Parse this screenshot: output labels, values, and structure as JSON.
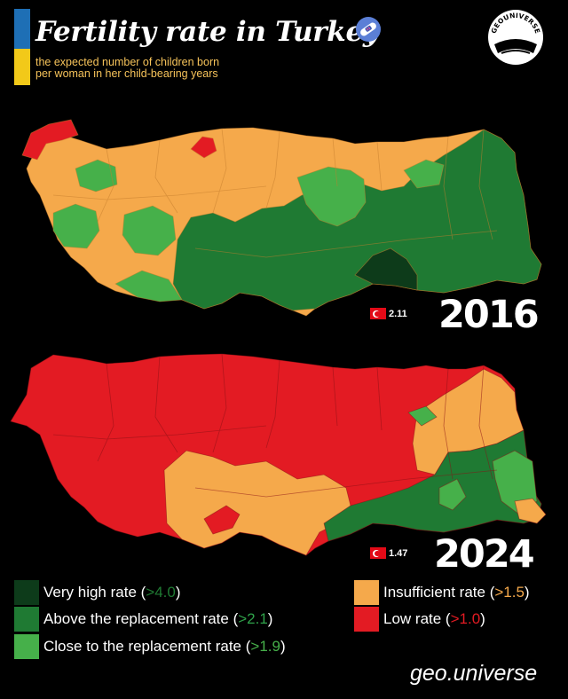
{
  "header": {
    "title": "Fertility rate in Turkey",
    "subtitle_line1": "the expected number of children born",
    "subtitle_line2": "per woman in her child-bearing years",
    "title_icon": "pregnancy-test-icon",
    "flag_colors": [
      "#1e6fb5",
      "#f2c919"
    ]
  },
  "logo": {
    "text": "GEOUNIVERSE",
    "icon": "globe-icon"
  },
  "colors": {
    "very_high": "#0d3b1a",
    "above": "#1f7a33",
    "close": "#46b04a",
    "insufficient": "#f5a94b",
    "low": "#e31b23"
  },
  "maps": [
    {
      "year": "2016",
      "national_rate": "2.11"
    },
    {
      "year": "2024",
      "national_rate": "1.47"
    }
  ],
  "legend": [
    {
      "label": "Very high rate (",
      "value": ">4.0",
      "close": ")",
      "color": "#0d3b1a"
    },
    {
      "label": "Above the replacement rate (",
      "value": ">2.1",
      "close": ")",
      "color": "#1f7a33"
    },
    {
      "label": "Close to the replacement rate (",
      "value": ">1.9",
      "close": ")",
      "color": "#46b04a"
    },
    {
      "label": "Insufficient rate (",
      "value": ">1.5",
      "close": ")",
      "color": "#f5a94b"
    },
    {
      "label": "Low rate (",
      "value": ">1.0",
      "close": ")",
      "color": "#e31b23"
    }
  ],
  "brand": "geo.universe"
}
